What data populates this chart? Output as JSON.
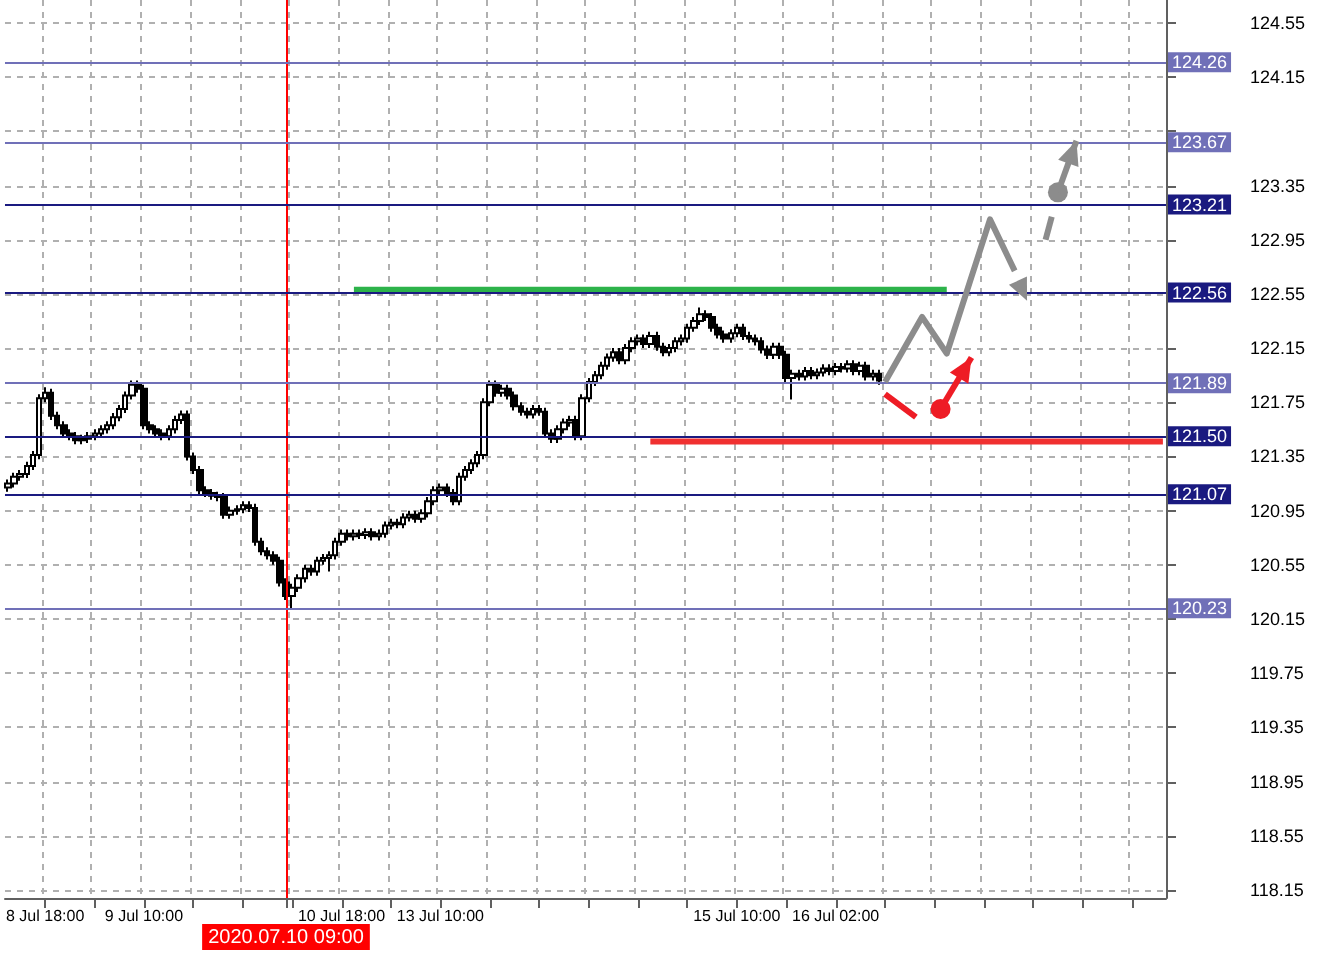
{
  "chart_data": {
    "type": "candlestick",
    "categories": [
      null,
      null,
      null,
      null,
      null,
      null,
      "8 Jul 18:00",
      null,
      null,
      null,
      null,
      null,
      null,
      null,
      null,
      null,
      null,
      null,
      null,
      null,
      null,
      null,
      "9 Jul 10:00",
      null,
      null,
      null,
      null,
      null,
      null,
      null,
      null,
      null,
      null,
      null,
      null,
      null,
      null,
      null,
      null,
      null,
      null,
      null,
      null,
      null,
      null,
      "2020.07.10 09:00",
      null,
      null,
      null,
      null,
      null,
      null,
      null,
      null,
      "10 Jul 18:00",
      null,
      null,
      null,
      null,
      null,
      null,
      null,
      null,
      null,
      null,
      null,
      null,
      null,
      null,
      null,
      "13 Jul 10:00",
      null,
      null,
      null,
      null,
      null,
      null,
      null,
      null,
      null,
      null,
      null,
      null,
      null,
      null,
      null,
      null,
      null,
      null,
      null,
      null,
      null,
      null,
      null,
      null,
      null,
      null,
      null,
      null,
      null,
      null,
      null,
      null,
      null,
      null,
      null,
      null,
      null,
      null,
      null,
      null,
      null,
      null,
      null,
      null,
      null,
      null,
      null,
      "15 Jul 10:00",
      null,
      null,
      null,
      null,
      null,
      null,
      null,
      null,
      null,
      null,
      null,
      null,
      null,
      null,
      null,
      "16 Jul 02:00",
      null,
      null,
      null,
      null,
      null,
      null,
      null,
      null,
      null,
      null,
      null,
      null,
      null,
      null,
      null,
      null,
      null,
      null,
      null,
      null,
      null,
      null,
      null,
      null,
      null,
      null,
      null,
      null,
      null,
      null,
      null,
      null,
      null,
      null,
      null,
      null,
      null,
      null,
      null,
      null,
      null,
      null,
      null,
      null,
      null,
      null,
      null,
      null,
      null,
      null,
      null,
      null,
      null
    ],
    "ohlc": [
      [
        121.12,
        121.18,
        121.09,
        121.15
      ],
      [
        121.15,
        121.23,
        121.12,
        121.2
      ],
      [
        121.2,
        121.25,
        121.17,
        121.22
      ],
      [
        121.22,
        121.31,
        121.19,
        121.28
      ],
      [
        121.28,
        121.39,
        121.25,
        121.36
      ],
      [
        121.36,
        121.81,
        121.33,
        121.78
      ],
      [
        121.78,
        121.86,
        121.75,
        121.82
      ],
      [
        121.82,
        121.85,
        121.62,
        121.65
      ],
      [
        121.65,
        121.68,
        121.55,
        121.58
      ],
      [
        121.58,
        121.61,
        121.49,
        121.52
      ],
      [
        121.52,
        121.55,
        121.47,
        121.5
      ],
      [
        121.5,
        121.53,
        121.44,
        121.47
      ],
      [
        121.47,
        121.51,
        121.44,
        121.48
      ],
      [
        121.48,
        121.53,
        121.45,
        121.5
      ],
      [
        121.5,
        121.55,
        121.47,
        121.52
      ],
      [
        121.52,
        121.58,
        121.49,
        121.55
      ],
      [
        121.55,
        121.61,
        121.52,
        121.58
      ],
      [
        121.58,
        121.67,
        121.55,
        121.64
      ],
      [
        121.64,
        121.73,
        121.61,
        121.7
      ],
      [
        121.7,
        121.83,
        121.67,
        121.8
      ],
      [
        121.8,
        121.91,
        121.77,
        121.88
      ],
      [
        121.88,
        121.91,
        121.82,
        121.85
      ],
      [
        121.85,
        121.88,
        121.55,
        121.58
      ],
      [
        121.58,
        121.61,
        121.52,
        121.55
      ],
      [
        121.55,
        121.58,
        121.49,
        121.52
      ],
      [
        121.52,
        121.55,
        121.47,
        121.5
      ],
      [
        121.5,
        121.58,
        121.47,
        121.55
      ],
      [
        121.55,
        121.65,
        121.52,
        121.62
      ],
      [
        121.62,
        121.69,
        121.59,
        121.66
      ],
      [
        121.66,
        121.69,
        121.32,
        121.35
      ],
      [
        121.35,
        121.38,
        121.22,
        121.25
      ],
      [
        121.25,
        121.28,
        121.07,
        121.1
      ],
      [
        121.1,
        121.13,
        121.05,
        121.08
      ],
      [
        121.08,
        121.11,
        121.03,
        121.06
      ],
      [
        121.06,
        121.09,
        121.02,
        121.05
      ],
      [
        121.05,
        121.08,
        120.89,
        120.92
      ],
      [
        120.92,
        120.98,
        120.89,
        120.95
      ],
      [
        120.95,
        120.99,
        120.92,
        120.96
      ],
      [
        120.96,
        121.02,
        120.93,
        120.99
      ],
      [
        120.99,
        121.02,
        120.94,
        120.97
      ],
      [
        120.97,
        121.0,
        120.69,
        120.72
      ],
      [
        120.72,
        120.75,
        120.62,
        120.65
      ],
      [
        120.65,
        120.68,
        120.59,
        120.62
      ],
      [
        120.62,
        120.65,
        120.55,
        120.58
      ],
      [
        120.58,
        120.61,
        120.39,
        120.42
      ],
      [
        120.42,
        120.45,
        120.29,
        120.32
      ],
      [
        120.32,
        120.41,
        120.22,
        120.38
      ],
      [
        120.38,
        120.48,
        120.35,
        120.45
      ],
      [
        120.45,
        120.55,
        120.42,
        120.52
      ],
      [
        120.52,
        120.55,
        120.47,
        120.5
      ],
      [
        120.5,
        120.61,
        120.47,
        120.58
      ],
      [
        120.58,
        120.63,
        120.55,
        120.6
      ],
      [
        120.6,
        120.65,
        120.5,
        120.62
      ],
      [
        120.62,
        120.75,
        120.59,
        120.72
      ],
      [
        120.72,
        120.81,
        120.69,
        120.78
      ],
      [
        120.78,
        120.81,
        120.73,
        120.76
      ],
      [
        120.76,
        120.81,
        120.73,
        120.78
      ],
      [
        120.78,
        120.81,
        120.74,
        120.77
      ],
      [
        120.77,
        120.82,
        120.74,
        120.79
      ],
      [
        120.79,
        120.82,
        120.73,
        120.76
      ],
      [
        120.76,
        120.81,
        120.73,
        120.78
      ],
      [
        120.78,
        120.87,
        120.75,
        120.84
      ],
      [
        120.84,
        120.89,
        120.81,
        120.86
      ],
      [
        120.86,
        120.89,
        120.82,
        120.85
      ],
      [
        120.85,
        120.93,
        120.82,
        120.9
      ],
      [
        120.9,
        120.95,
        120.87,
        120.92
      ],
      [
        120.92,
        120.95,
        120.86,
        120.89
      ],
      [
        120.89,
        120.96,
        120.86,
        120.93
      ],
      [
        120.93,
        121.05,
        120.9,
        121.02
      ],
      [
        121.02,
        121.13,
        120.99,
        121.1
      ],
      [
        121.1,
        121.15,
        121.07,
        121.12
      ],
      [
        121.12,
        121.15,
        121.05,
        121.08
      ],
      [
        121.08,
        121.11,
        120.99,
        121.02
      ],
      [
        121.02,
        121.23,
        120.99,
        121.2
      ],
      [
        121.2,
        121.28,
        121.17,
        121.25
      ],
      [
        121.25,
        121.33,
        121.22,
        121.3
      ],
      [
        121.3,
        121.39,
        121.27,
        121.36
      ],
      [
        121.36,
        121.78,
        121.33,
        121.75
      ],
      [
        121.75,
        121.91,
        121.72,
        121.88
      ],
      [
        121.88,
        121.91,
        121.79,
        121.82
      ],
      [
        121.82,
        121.88,
        121.79,
        121.85
      ],
      [
        121.85,
        121.88,
        121.77,
        121.8
      ],
      [
        121.8,
        121.83,
        121.69,
        121.72
      ],
      [
        121.72,
        121.75,
        121.65,
        121.68
      ],
      [
        121.68,
        121.71,
        121.63,
        121.66
      ],
      [
        121.66,
        121.73,
        121.63,
        121.7
      ],
      [
        121.7,
        121.73,
        121.65,
        121.68
      ],
      [
        121.68,
        121.71,
        121.49,
        121.52
      ],
      [
        121.52,
        121.55,
        121.45,
        121.48
      ],
      [
        121.48,
        121.58,
        121.45,
        121.55
      ],
      [
        121.55,
        121.63,
        121.52,
        121.6
      ],
      [
        121.6,
        121.65,
        121.57,
        121.62
      ],
      [
        121.62,
        121.65,
        121.47,
        121.5
      ],
      [
        121.5,
        121.81,
        121.47,
        121.78
      ],
      [
        121.78,
        121.93,
        121.75,
        121.9
      ],
      [
        121.9,
        121.98,
        121.87,
        121.95
      ],
      [
        121.95,
        122.05,
        121.92,
        122.02
      ],
      [
        122.02,
        122.11,
        121.99,
        122.08
      ],
      [
        122.08,
        122.15,
        122.05,
        122.12
      ],
      [
        122.12,
        122.15,
        122.03,
        122.06
      ],
      [
        122.06,
        122.18,
        122.03,
        122.15
      ],
      [
        122.15,
        122.23,
        122.12,
        122.2
      ],
      [
        122.2,
        122.25,
        122.17,
        122.22
      ],
      [
        122.22,
        122.25,
        122.15,
        122.18
      ],
      [
        122.18,
        122.27,
        122.15,
        122.24
      ],
      [
        122.24,
        122.27,
        122.13,
        122.16
      ],
      [
        122.16,
        122.19,
        122.09,
        122.12
      ],
      [
        122.12,
        122.18,
        122.09,
        122.15
      ],
      [
        122.15,
        122.23,
        122.12,
        122.2
      ],
      [
        122.2,
        122.25,
        122.17,
        122.22
      ],
      [
        122.22,
        122.33,
        122.19,
        122.3
      ],
      [
        122.3,
        122.38,
        122.27,
        122.35
      ],
      [
        122.35,
        122.45,
        122.32,
        122.4
      ],
      [
        122.4,
        122.43,
        122.35,
        122.38
      ],
      [
        122.38,
        122.41,
        122.27,
        122.3
      ],
      [
        122.3,
        122.33,
        122.22,
        122.25
      ],
      [
        122.25,
        122.28,
        122.19,
        122.22
      ],
      [
        122.22,
        122.29,
        122.19,
        122.26
      ],
      [
        122.26,
        122.33,
        122.23,
        122.3
      ],
      [
        122.3,
        122.33,
        122.21,
        122.24
      ],
      [
        122.24,
        122.27,
        122.19,
        122.22
      ],
      [
        122.22,
        122.25,
        122.17,
        122.2
      ],
      [
        122.2,
        122.23,
        122.11,
        122.14
      ],
      [
        122.14,
        122.17,
        122.07,
        122.1
      ],
      [
        122.1,
        122.19,
        122.07,
        122.16
      ],
      [
        122.16,
        122.19,
        122.07,
        122.1
      ],
      [
        122.1,
        122.13,
        121.9,
        121.93
      ],
      [
        121.93,
        121.99,
        121.77,
        121.96
      ],
      [
        121.96,
        121.99,
        121.91,
        121.94
      ],
      [
        121.94,
        122.01,
        121.91,
        121.98
      ],
      [
        121.98,
        122.01,
        121.92,
        121.95
      ],
      [
        121.95,
        122.0,
        121.92,
        121.97
      ],
      [
        121.97,
        122.03,
        121.94,
        122.0
      ],
      [
        122.0,
        122.03,
        121.95,
        121.98
      ],
      [
        121.98,
        122.04,
        121.95,
        122.01
      ],
      [
        122.01,
        122.04,
        121.97,
        122.0
      ],
      [
        122.0,
        122.06,
        121.97,
        122.03
      ],
      [
        122.03,
        122.06,
        121.95,
        121.98
      ],
      [
        121.98,
        122.05,
        121.95,
        122.02
      ],
      [
        122.02,
        122.05,
        121.91,
        121.94
      ],
      [
        121.94,
        121.99,
        121.91,
        121.96
      ],
      [
        121.96,
        121.99,
        121.88,
        121.91
      ],
      null,
      null,
      null,
      null,
      null,
      null,
      null,
      null,
      null,
      null,
      null,
      null,
      null,
      null,
      null,
      null,
      null,
      null,
      null,
      null,
      null,
      null,
      null,
      null,
      null,
      null,
      null,
      null,
      null,
      null,
      null,
      null,
      null,
      null,
      null,
      null,
      null,
      null,
      null,
      null,
      null,
      null,
      null,
      null,
      null,
      null
    ],
    "series": [
      {
        "type": "line",
        "color": "#2db34a",
        "values": [
          null,
          null,
          null,
          null,
          null,
          null,
          null,
          null,
          null,
          null,
          null,
          null,
          null,
          null,
          null,
          null,
          null,
          null,
          null,
          null,
          null,
          null,
          null,
          null,
          null,
          null,
          null,
          null,
          null,
          null,
          null,
          null,
          null,
          null,
          null,
          null,
          null,
          null,
          null,
          null,
          null,
          null,
          null,
          null,
          null,
          null,
          null,
          null,
          null,
          null,
          null,
          null,
          null,
          null,
          null,
          null,
          122.58,
          122.58,
          122.58,
          122.58,
          122.58,
          122.58,
          122.58,
          122.58,
          122.58,
          122.58,
          122.58,
          122.58,
          122.58,
          122.58,
          122.58,
          122.58,
          122.58,
          122.58,
          122.58,
          122.58,
          122.58,
          122.58,
          122.58,
          122.58,
          122.58,
          122.58,
          122.58,
          122.58,
          122.58,
          122.58,
          122.58,
          122.58,
          122.58,
          122.58,
          122.58,
          122.58,
          122.58,
          122.58,
          122.58,
          122.58,
          122.58,
          122.58,
          122.58,
          122.58,
          122.58,
          122.58,
          122.58,
          122.58,
          122.58,
          122.58,
          122.58,
          122.58,
          122.58,
          122.58,
          122.58,
          122.58,
          122.58,
          122.58,
          122.58,
          122.58,
          122.58,
          122.58,
          122.58,
          122.58,
          122.58,
          122.58,
          122.58,
          122.58,
          122.58,
          122.58,
          122.58,
          122.58,
          122.58,
          122.58,
          122.58,
          122.58,
          122.58,
          122.58,
          122.58,
          122.58,
          122.58,
          122.58,
          122.58,
          122.58,
          122.58,
          122.58,
          122.58,
          122.58,
          122.58,
          122.58,
          122.58,
          122.58,
          122.58,
          122.58,
          122.58,
          122.58,
          122.58,
          null,
          null,
          null,
          null,
          null,
          null,
          null,
          null,
          null,
          null,
          null,
          null,
          null,
          null,
          null,
          null,
          null,
          null,
          null,
          null,
          null,
          null,
          null,
          null,
          null,
          null,
          null,
          null,
          null,
          null,
          null,
          null,
          null,
          null,
          null
        ]
      },
      {
        "type": "line",
        "color": "#f03030",
        "values": [
          null,
          null,
          null,
          null,
          null,
          null,
          null,
          null,
          null,
          null,
          null,
          null,
          null,
          null,
          null,
          null,
          null,
          null,
          null,
          null,
          null,
          null,
          null,
          null,
          null,
          null,
          null,
          null,
          null,
          null,
          null,
          null,
          null,
          null,
          null,
          null,
          null,
          null,
          null,
          null,
          null,
          null,
          null,
          null,
          null,
          null,
          null,
          null,
          null,
          null,
          null,
          null,
          null,
          null,
          null,
          null,
          null,
          null,
          null,
          null,
          null,
          null,
          null,
          null,
          null,
          null,
          null,
          null,
          null,
          null,
          null,
          null,
          null,
          null,
          null,
          null,
          null,
          null,
          null,
          null,
          null,
          null,
          null,
          null,
          null,
          null,
          null,
          null,
          null,
          null,
          null,
          null,
          null,
          null,
          null,
          null,
          null,
          null,
          null,
          null,
          null,
          null,
          null,
          null,
          121.46,
          121.46,
          121.46,
          121.46,
          121.46,
          121.46,
          121.46,
          121.46,
          121.46,
          121.46,
          121.46,
          121.46,
          121.46,
          121.46,
          121.46,
          121.46,
          121.46,
          121.46,
          121.46,
          121.46,
          121.46,
          121.46,
          121.46,
          121.46,
          121.46,
          121.46,
          121.46,
          121.46,
          121.46,
          121.46,
          121.46,
          121.46,
          121.46,
          121.46,
          121.46,
          121.46,
          121.46,
          121.46,
          121.46,
          121.46,
          121.46,
          121.46,
          121.46,
          121.46,
          121.46,
          121.46,
          121.46,
          121.46,
          121.46,
          121.46,
          121.46,
          121.46,
          121.46,
          121.46,
          121.46,
          121.46,
          121.46,
          121.46,
          121.46,
          121.46,
          121.46,
          121.46,
          121.46,
          121.46,
          121.46,
          121.46,
          121.46,
          121.46,
          121.46,
          121.46,
          121.46,
          121.46,
          121.46,
          121.46,
          121.46,
          121.46,
          121.46,
          121.46,
          121.46,
          121.46,
          121.46,
          121.46,
          121.46,
          121.46
        ]
      }
    ],
    "ylim": [
      118.09,
      124.72
    ],
    "yticks": [
      118.15,
      118.55,
      118.95,
      119.35,
      119.75,
      120.15,
      120.55,
      120.95,
      121.35,
      121.75,
      122.15,
      122.55,
      122.95,
      123.35,
      {
        "value": 123.75,
        "label": null
      },
      124.15,
      124.55
    ],
    "ref_lines": [
      {
        "axis": "x",
        "value": "2020.07.10 09:00",
        "color": "#ff0000"
      },
      {
        "axis": "y",
        "value": 124.26,
        "label": "124.26",
        "color": "#7070b8"
      },
      {
        "axis": "y",
        "value": 123.67,
        "label": "123.67",
        "color": "#7070b8"
      },
      {
        "axis": "y",
        "value": 123.21,
        "label": "123.21",
        "color": "#1a1a80"
      },
      {
        "axis": "y",
        "value": 122.56,
        "label": "122.56",
        "color": "#1a1a80"
      },
      {
        "axis": "y",
        "value": 121.89,
        "label": "121.89",
        "color": "#7070b8"
      },
      {
        "axis": "y",
        "value": 121.5,
        "label": "121.50",
        "color": "#1a1a80"
      },
      {
        "axis": "y",
        "value": 121.07,
        "label": "121.07",
        "color": "#1a1a80"
      },
      {
        "axis": "y",
        "value": 120.23,
        "label": "120.23",
        "color": "#7070b8"
      }
    ],
    "grid": true,
    "marker": "none"
  }
}
